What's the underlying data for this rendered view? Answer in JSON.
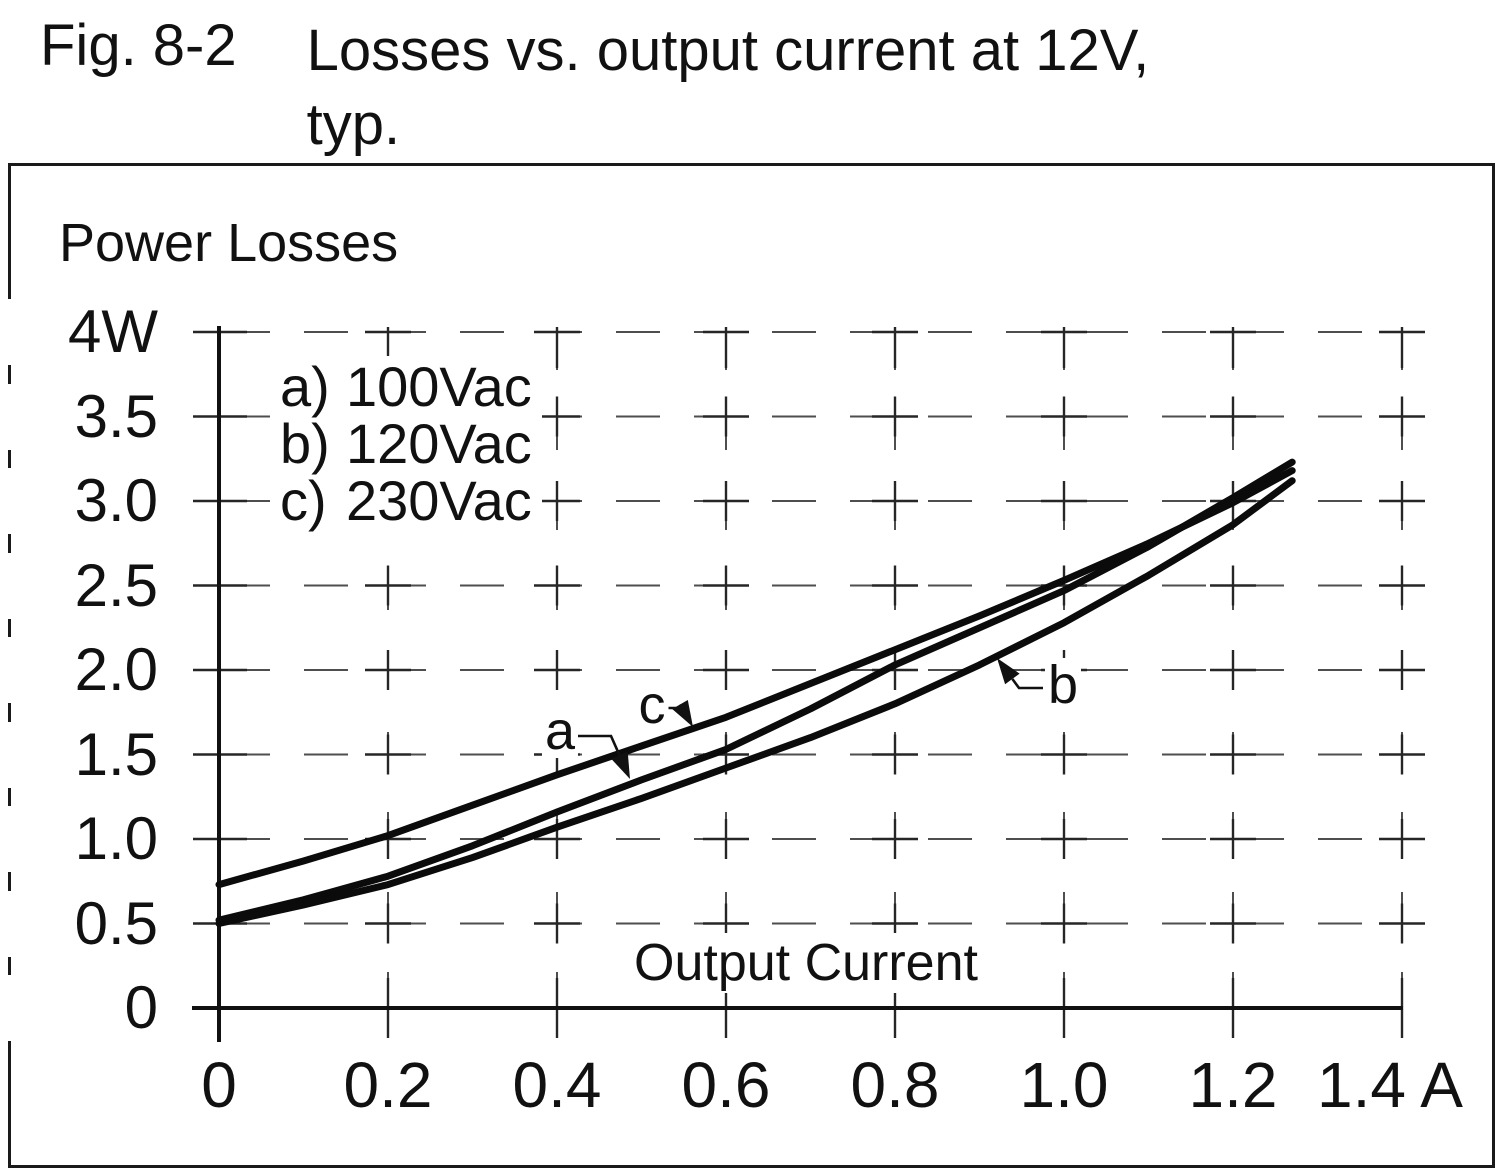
{
  "figure": {
    "number": "Fig. 8-2",
    "title_line1": "Losses vs. output current at 12V,",
    "title_line2": "typ."
  },
  "chart_data": {
    "type": "line",
    "title": "Power Losses",
    "xlabel": "Output Current",
    "x_unit": "A",
    "y_unit": "W",
    "xlim": [
      0,
      1.4
    ],
    "ylim": [
      0,
      4
    ],
    "grid": "dashed",
    "legend_position": "inside-top-left",
    "x_tick_labels": [
      "0",
      "0.2",
      "0.4",
      "0.6",
      "0.8",
      "1.0",
      "1.2",
      "1.4 A"
    ],
    "y_tick_labels": [
      "0",
      "0.5",
      "1.0",
      "1.5",
      "2.0",
      "2.5",
      "3.0",
      "3.5",
      "4W"
    ],
    "x": [
      0,
      0.1,
      0.2,
      0.3,
      0.4,
      0.5,
      0.6,
      0.7,
      0.8,
      0.9,
      1.0,
      1.1,
      1.2,
      1.27
    ],
    "series": [
      {
        "key": "a",
        "prefix": "a)",
        "label": "100Vac",
        "values": [
          0.52,
          0.64,
          0.78,
          0.96,
          1.16,
          1.35,
          1.53,
          1.77,
          2.03,
          2.25,
          2.47,
          2.73,
          3.02,
          3.23
        ]
      },
      {
        "key": "b",
        "prefix": "b)",
        "label": "120Vac",
        "values": [
          0.5,
          0.61,
          0.73,
          0.89,
          1.07,
          1.24,
          1.42,
          1.6,
          1.8,
          2.03,
          2.28,
          2.56,
          2.86,
          3.12
        ]
      },
      {
        "key": "c",
        "prefix": "c)",
        "label": "230Vac",
        "values": [
          0.73,
          0.87,
          1.02,
          1.2,
          1.38,
          1.55,
          1.72,
          1.92,
          2.12,
          2.32,
          2.53,
          2.75,
          2.99,
          3.18
        ]
      }
    ]
  }
}
